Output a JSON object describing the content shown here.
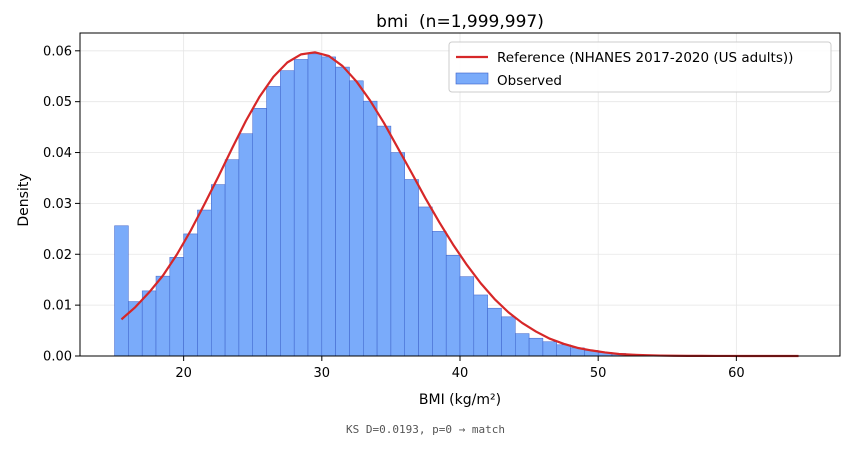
{
  "chart_data": {
    "type": "bar",
    "title": "bmi  (n=1,999,997)",
    "xlabel": "BMI (kg/m²)",
    "ylabel": "Density",
    "xlim": [
      12.5,
      67.5
    ],
    "ylim": [
      0,
      0.0635
    ],
    "xticks": [
      20,
      30,
      40,
      50,
      60
    ],
    "yticks": [
      0.0,
      0.01,
      0.02,
      0.03,
      0.04,
      0.05,
      0.06
    ],
    "ytick_labels": [
      "0.00",
      "0.01",
      "0.02",
      "0.03",
      "0.04",
      "0.05",
      "0.06"
    ],
    "grid": true,
    "legend_position": "top-right",
    "bin_width": 1,
    "series": [
      {
        "name": "Reference (NHANES 2017-2020 (US adults))",
        "type": "line",
        "color": "#d62728",
        "x": [
          15.5,
          16.5,
          17.5,
          18.5,
          19.5,
          20.5,
          21.5,
          22.5,
          23.5,
          24.5,
          25.5,
          26.5,
          27.5,
          28.5,
          29.5,
          30.5,
          31.5,
          32.5,
          33.5,
          34.5,
          35.5,
          36.5,
          37.5,
          38.5,
          39.5,
          40.5,
          41.5,
          42.5,
          43.5,
          44.5,
          45.5,
          46.5,
          47.5,
          48.5,
          49.5,
          50.5,
          51.5,
          52.5,
          53.5,
          54.5,
          55.5,
          56.5,
          57.5,
          58.5,
          59.5,
          60.5,
          61.5,
          62.5,
          63.5,
          64.5
        ],
        "y": [
          0.0072,
          0.0096,
          0.0125,
          0.0158,
          0.0199,
          0.0246,
          0.0298,
          0.0352,
          0.0408,
          0.0462,
          0.051,
          0.0549,
          0.0577,
          0.0593,
          0.0597,
          0.059,
          0.057,
          0.054,
          0.0502,
          0.0458,
          0.0409,
          0.036,
          0.031,
          0.0263,
          0.0219,
          0.0179,
          0.0143,
          0.0112,
          0.0086,
          0.0065,
          0.0048,
          0.0034,
          0.0024,
          0.0016,
          0.0011,
          0.0007,
          0.0004,
          0.00025,
          0.00015,
          9e-05,
          5e-05,
          3e-05,
          2e-05,
          1e-05,
          1e-05,
          0.0,
          0.0,
          0.0,
          0.0,
          0.0
        ]
      },
      {
        "name": "Observed",
        "type": "bar",
        "color": "#7aabfa",
        "edge_color": "#3a5fc8",
        "x": [
          15,
          16,
          17,
          18,
          19,
          20,
          21,
          22,
          23,
          24,
          25,
          26,
          27,
          28,
          29,
          30,
          31,
          32,
          33,
          34,
          35,
          36,
          37,
          38,
          39,
          40,
          41,
          42,
          43,
          44,
          45,
          46,
          47,
          48,
          49,
          50,
          51,
          52,
          53,
          54,
          55
        ],
        "values": [
          0.0256,
          0.0107,
          0.0128,
          0.0157,
          0.0194,
          0.024,
          0.0287,
          0.0337,
          0.0386,
          0.0437,
          0.0487,
          0.053,
          0.0561,
          0.0583,
          0.0594,
          0.0588,
          0.0568,
          0.0541,
          0.0501,
          0.0452,
          0.04,
          0.0347,
          0.0293,
          0.0245,
          0.0198,
          0.0156,
          0.012,
          0.0094,
          0.0077,
          0.0044,
          0.0035,
          0.0028,
          0.0022,
          0.0016,
          0.0011,
          0.0007,
          0.0005,
          0.0003,
          0.0002,
          0.0001,
          0.0001
        ]
      }
    ]
  },
  "footer": "KS D=0.0193, p=0 → match"
}
